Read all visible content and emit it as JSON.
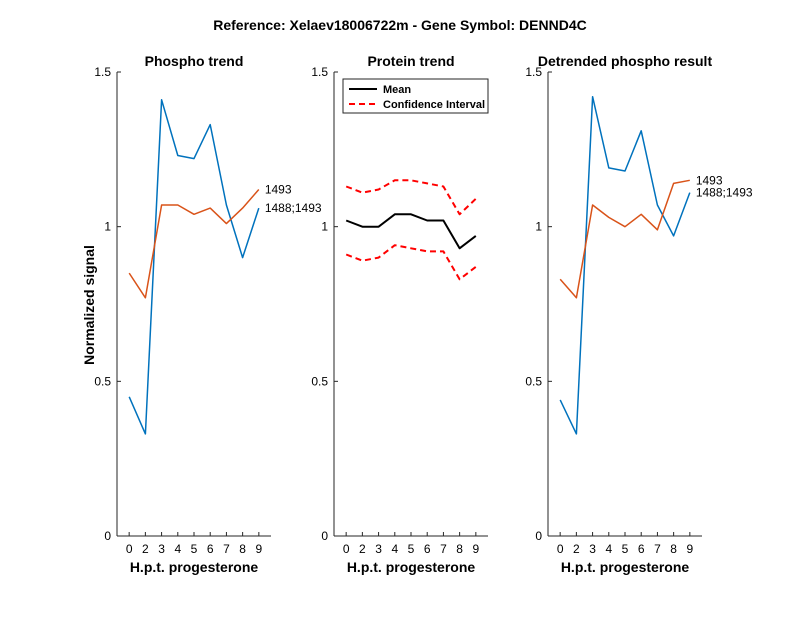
{
  "figure": {
    "suptitle": "Reference:  Xelaev18006722m - Gene Symbol:  DENND4C",
    "ylabel": "Normalized signal"
  },
  "chart_data": [
    {
      "type": "line",
      "title": "Phospho trend",
      "xlabel": "H.p.t. progesterone",
      "ylabel": "Normalized signal",
      "x": [
        0,
        2,
        3,
        4,
        5,
        6,
        7,
        8,
        9
      ],
      "xticks": [
        "0",
        "2",
        "3",
        "4",
        "5",
        "6",
        "7",
        "8",
        "9"
      ],
      "ylim": [
        0,
        1.5
      ],
      "yticks": [
        "0",
        "0.5",
        "1",
        "1.5"
      ],
      "series": [
        {
          "name": "1488;1493",
          "color": "#0072BD",
          "dash": "none",
          "width": 1.5,
          "values": [
            0.45,
            0.33,
            1.41,
            1.23,
            1.22,
            1.33,
            1.07,
            0.9,
            1.06
          ]
        },
        {
          "name": "1493",
          "color": "#D95319",
          "dash": "none",
          "width": 1.5,
          "values": [
            0.85,
            0.77,
            1.07,
            1.07,
            1.04,
            1.06,
            1.01,
            1.06,
            1.12
          ]
        }
      ],
      "line_labels": [
        {
          "text": "1493",
          "y": 1.12
        },
        {
          "text": "1488;1493",
          "y": 1.06
        }
      ]
    },
    {
      "type": "line",
      "title": "Protein trend",
      "xlabel": "H.p.t. progesterone",
      "x": [
        0,
        2,
        3,
        4,
        5,
        6,
        7,
        8,
        9
      ],
      "xticks": [
        "0",
        "2",
        "3",
        "4",
        "5",
        "6",
        "7",
        "8",
        "9"
      ],
      "ylim": [
        0,
        1.5
      ],
      "yticks": [
        "0",
        "0.5",
        "1",
        "1.5"
      ],
      "legend": {
        "position": "top-right",
        "entries": [
          "Mean",
          "Confidence Interval"
        ]
      },
      "series": [
        {
          "name": "Mean",
          "color": "#000000",
          "dash": "none",
          "width": 2,
          "values": [
            1.02,
            1.0,
            1.0,
            1.04,
            1.04,
            1.02,
            1.02,
            0.93,
            0.97
          ]
        },
        {
          "name": "Confidence Interval",
          "color": "#FF0000",
          "dash": "6,4",
          "width": 2,
          "values": [
            1.13,
            1.11,
            1.12,
            1.15,
            1.15,
            1.14,
            1.13,
            1.04,
            1.09
          ]
        },
        {
          "name": "Confidence Interval",
          "color": "#FF0000",
          "dash": "6,4",
          "width": 2,
          "values": [
            0.91,
            0.89,
            0.9,
            0.94,
            0.93,
            0.92,
            0.92,
            0.83,
            0.87
          ]
        }
      ]
    },
    {
      "type": "line",
      "title": "Detrended phospho result",
      "xlabel": "H.p.t. progesterone",
      "x": [
        0,
        2,
        3,
        4,
        5,
        6,
        7,
        8,
        9
      ],
      "xticks": [
        "0",
        "2",
        "3",
        "4",
        "5",
        "6",
        "7",
        "8",
        "9"
      ],
      "ylim": [
        0,
        1.5
      ],
      "yticks": [
        "0",
        "0.5",
        "1",
        "1.5"
      ],
      "series": [
        {
          "name": "1488;1493",
          "color": "#0072BD",
          "dash": "none",
          "width": 1.5,
          "values": [
            0.44,
            0.33,
            1.42,
            1.19,
            1.18,
            1.31,
            1.07,
            0.97,
            1.11
          ]
        },
        {
          "name": "1493",
          "color": "#D95319",
          "dash": "none",
          "width": 1.5,
          "values": [
            0.83,
            0.77,
            1.07,
            1.03,
            1.0,
            1.04,
            0.99,
            1.14,
            1.15
          ]
        }
      ],
      "line_labels": [
        {
          "text": "1493",
          "y": 1.15
        },
        {
          "text": "1488;1493",
          "y": 1.11
        }
      ]
    }
  ]
}
